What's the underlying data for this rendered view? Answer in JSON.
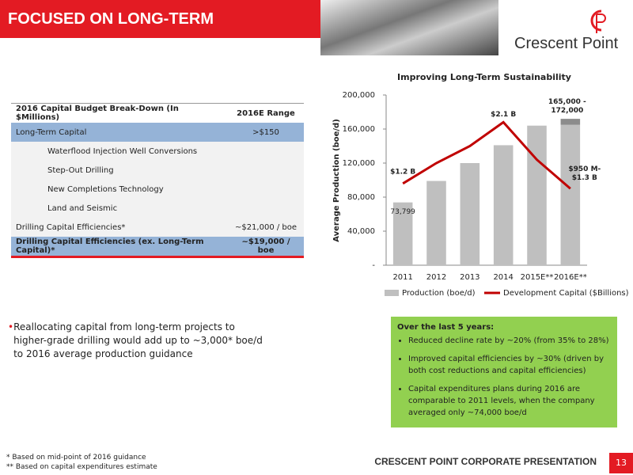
{
  "header": {
    "title": "FOCUSED ON LONG-TERM SUSTAINABILITY",
    "logo_text": "Crescent Point"
  },
  "table": {
    "columns": [
      "2016 Capital Budget Break-Down (In $Millions)",
      "2016E Range"
    ],
    "rows": [
      [
        "Long-Term Capital",
        ">$150"
      ],
      [
        "Waterflood Injection Well Conversions"
      ],
      [
        "Step-Out Drilling"
      ],
      [
        "New Completions Technology"
      ],
      [
        "Land and Seismic"
      ],
      [
        "Drilling Capital Efficiencies*",
        "~$21,000 / boe"
      ],
      [
        "Drilling Capital Efficiencies (ex. Long-Term Capital)*",
        "~$19,000 / boe"
      ]
    ]
  },
  "chart_data": {
    "type": "bar",
    "title": "Improving Long-Term Sustainability",
    "y_label": "Average Production (boe/d)",
    "categories": [
      "2011",
      "2012",
      "2013",
      "2014",
      "2015E**",
      "2016E**"
    ],
    "series": [
      {
        "name": "Production (boe/d)",
        "type": "bar",
        "color": "#bfbfbf",
        "values": [
          73799,
          99000,
          120000,
          141000,
          164000,
          165000
        ],
        "value_labels": [
          "73,799",
          null,
          null,
          null,
          null,
          null
        ]
      },
      {
        "name": "Development Capital ($Billions)",
        "type": "line",
        "axis": "y2",
        "color": "#c00000",
        "values": [
          1.2,
          1.5,
          1.75,
          2.1,
          1.55,
          1.125
        ],
        "value_labels": [
          "$1.2 B",
          null,
          null,
          "$2.1 B",
          null,
          null
        ]
      }
    ],
    "production_range": {
      "low": 165000,
      "high": 172000,
      "label": "165,000 - 172,000",
      "color": "#8c8c8c"
    },
    "capital_range": {
      "low": 0.95,
      "high": 1.3,
      "label": "$950 M-$1.3 B"
    },
    "ylim": [
      0,
      200000
    ],
    "yticks": [
      {
        "value": 0,
        "label": "-"
      },
      {
        "value": 40000,
        "label": "40,000"
      },
      {
        "value": 80000,
        "label": "80,000"
      },
      {
        "value": 120000,
        "label": "120,000"
      },
      {
        "value": 160000,
        "label": "160,000"
      },
      {
        "value": 200000,
        "label": "200,000"
      }
    ],
    "y2lim": [
      0,
      2.5
    ],
    "grid": false,
    "legend": "bottom"
  },
  "bullets": [
    "Reallocating capital from long-term projects to higher-grade drilling would add up to ~3,000* boe/d to 2016 average production guidance"
  ],
  "callout": {
    "title": "Over the last 5 years:",
    "items": [
      "Reduced decline rate by ~20% (from 35% to 28%)",
      "Improved capital efficiencies by ~30% (driven by both cost reductions and capital efficiencies)",
      "Capital expenditures plans during 2016 are comparable to 2011 levels, when the company averaged only ~74,000 boe/d"
    ]
  },
  "footnotes": [
    "* Based on mid-point of 2016 guidance",
    "** Based on capital expenditures estimate"
  ],
  "footer": {
    "text": "CRESCENT POINT CORPORATE PRESENTATION",
    "page": 13
  }
}
